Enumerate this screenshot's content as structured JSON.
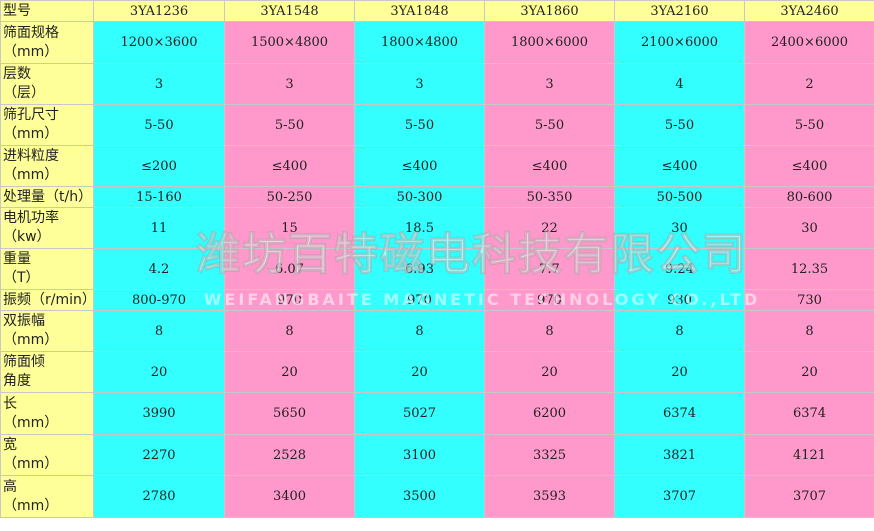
{
  "table": {
    "header": {
      "label": [
        "型号"
      ],
      "cells": [
        "3YA1236",
        "3YA1548",
        "3YA1848",
        "3YA1860",
        "3YA2160",
        "3YA2460"
      ]
    },
    "rows": [
      {
        "label": [
          "筛面规格",
          "（mm）"
        ],
        "cells": [
          "1200×3600",
          "1500×4800",
          "1800×4800",
          "1800×6000",
          "2100×6000",
          "2400×6000"
        ]
      },
      {
        "label": [
          "层数",
          "（层）"
        ],
        "cells": [
          "3",
          "3",
          "3",
          "3",
          "4",
          "2"
        ]
      },
      {
        "label": [
          "筛孔尺寸",
          "（mm）"
        ],
        "cells": [
          "5-50",
          "5-50",
          "5-50",
          "5-50",
          "5-50",
          "5-50"
        ]
      },
      {
        "label": [
          "进料粒度",
          "（mm）"
        ],
        "cells": [
          "≤200",
          "≤400",
          "≤400",
          "≤400",
          "≤400",
          "≤400"
        ]
      },
      {
        "label": [
          "处理量（t/h）"
        ],
        "cells": [
          "15-160",
          "50-250",
          "50-300",
          "50-350",
          "50-500",
          "80-600"
        ]
      },
      {
        "label": [
          "电机功率",
          "（kw）"
        ],
        "cells": [
          "11",
          "15",
          "18.5",
          "22",
          "30",
          "30"
        ]
      },
      {
        "label": [
          "重量",
          "（T）"
        ],
        "cells": [
          "4.2",
          "6.07",
          "6.93",
          "7.7",
          "9.24",
          "12.35"
        ]
      },
      {
        "label": [
          "振频（r/min）"
        ],
        "cells": [
          "800-970",
          "970",
          "970",
          "970",
          "930",
          "730"
        ]
      },
      {
        "label": [
          "双振幅",
          "（mm）"
        ],
        "cells": [
          "8",
          "8",
          "8",
          "8",
          "8",
          "8"
        ]
      },
      {
        "label": [
          "筛面倾",
          "角度"
        ],
        "cells": [
          "20",
          "20",
          "20",
          "20",
          "20",
          "20"
        ]
      },
      {
        "label": [
          "长",
          "（mm）"
        ],
        "cells": [
          "3990",
          "5650",
          "5027",
          "6200",
          "6374",
          "6374"
        ]
      },
      {
        "label": [
          "宽",
          "（mm）"
        ],
        "cells": [
          "2270",
          "2528",
          "3100",
          "3325",
          "3821",
          "4121"
        ]
      },
      {
        "label": [
          "高",
          "（mm）"
        ],
        "cells": [
          "2780",
          "3400",
          "3500",
          "3593",
          "3707",
          "3707"
        ]
      }
    ]
  },
  "watermark": {
    "name": "潍坊百特磁电科技有限公司",
    "english": "WEIFANGBAITE MAGNETIC TECHNOLOGY CO.,LTD"
  }
}
